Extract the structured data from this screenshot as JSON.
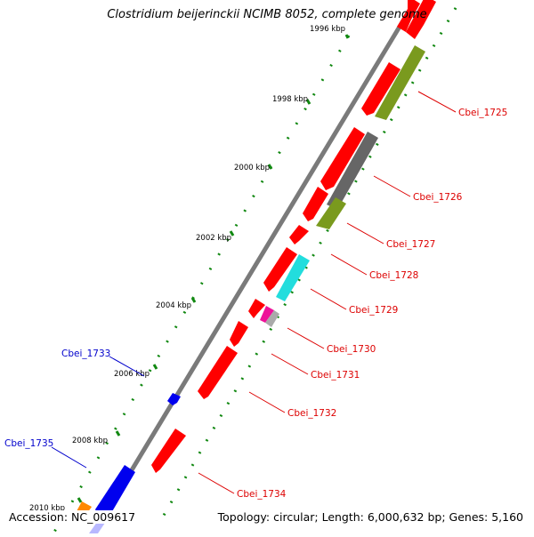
{
  "title": "Clostridium beijerinckii NCIMB 8052, complete genome",
  "footer": {
    "accession": "Accession: NC_009617",
    "summary": "Topology: circular; Length: 6,000,632 bp; Genes: 5,160"
  },
  "colors": {
    "backbone": "#7a7a7a",
    "forward_feature": "#ff0000",
    "reverse_feature": "#ff0000",
    "tick": "#118811",
    "label_red": "#dd0000",
    "label_blue": "#0000cc",
    "olive": "#7a9a1e",
    "gray": "#666666",
    "cyan": "#22dddd",
    "magenta": "#ee1199",
    "blue": "#0000ee",
    "orange": "#ff8800"
  },
  "ticks": [
    {
      "label": "1996 kbp"
    },
    {
      "label": "1998 kbp"
    },
    {
      "label": "2000 kbp"
    },
    {
      "label": "2002 kbp"
    },
    {
      "label": "2004 kbp"
    },
    {
      "label": "2006 kbp"
    },
    {
      "label": "2008 kbp"
    },
    {
      "label": "2010 kbp"
    }
  ],
  "gene_labels": [
    {
      "id": "Cbei_1725",
      "color": "red"
    },
    {
      "id": "Cbei_1726",
      "color": "red"
    },
    {
      "id": "Cbei_1727",
      "color": "red"
    },
    {
      "id": "Cbei_1728",
      "color": "red"
    },
    {
      "id": "Cbei_1729",
      "color": "red"
    },
    {
      "id": "Cbei_1730",
      "color": "red"
    },
    {
      "id": "Cbei_1731",
      "color": "red"
    },
    {
      "id": "Cbei_1732",
      "color": "red"
    },
    {
      "id": "Cbei_1733",
      "color": "blue"
    },
    {
      "id": "Cbei_1734",
      "color": "red"
    },
    {
      "id": "Cbei_1735",
      "color": "blue"
    }
  ]
}
